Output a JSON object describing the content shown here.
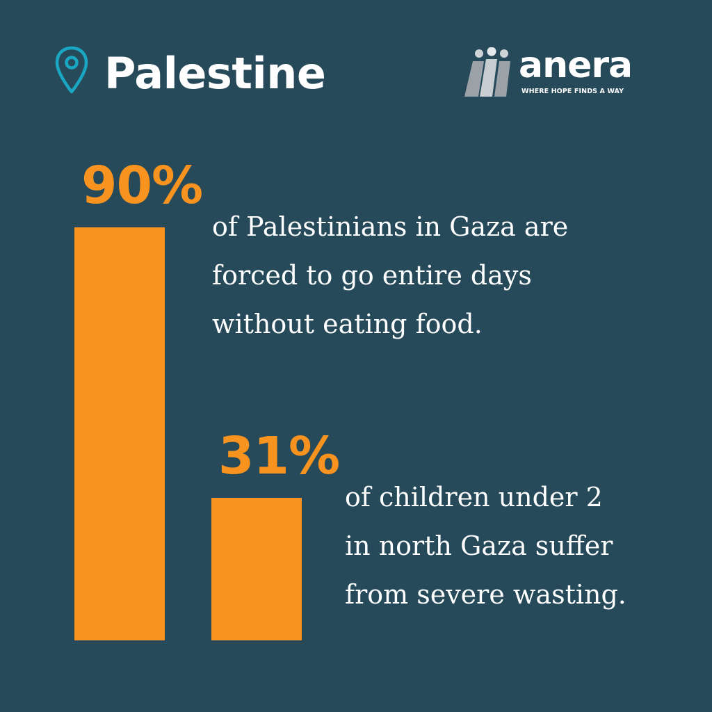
{
  "header": {
    "country": "Palestine",
    "location_icon": "location-pin-icon"
  },
  "brand": {
    "name": "anera",
    "tagline": "WHERE HOPE FINDS A WAY",
    "logo_icon": "anera-people-logo"
  },
  "colors": {
    "background": "#264a5a",
    "accent": "#f7931e",
    "pin": "#1aa7c4",
    "text": "#ffffff"
  },
  "chart_data": {
    "type": "bar",
    "values": [
      90,
      31
    ],
    "value_labels": [
      "90%",
      "31%"
    ],
    "captions": [
      [
        "of Palestinians in Gaza are",
        "forced to go entire days",
        "without eating food."
      ],
      [
        "of children under 2",
        "in north Gaza suffer",
        "from severe wasting."
      ]
    ],
    "ylim": [
      0,
      100
    ],
    "grid": false
  }
}
